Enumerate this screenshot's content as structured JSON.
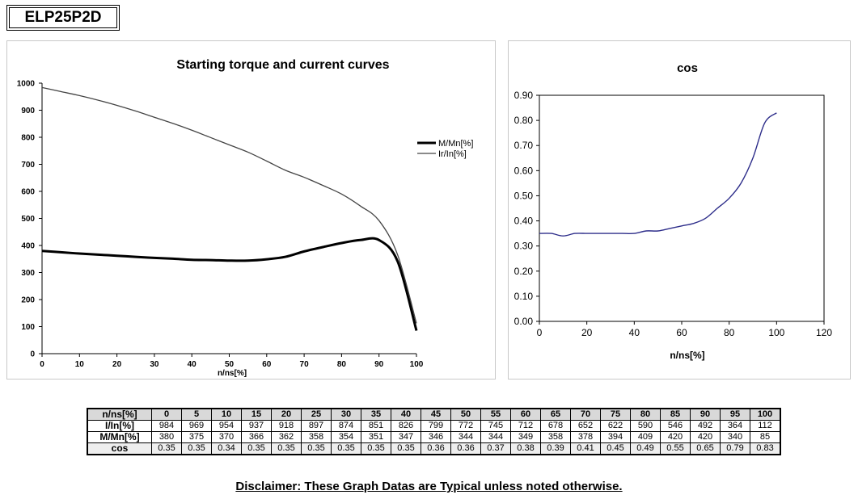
{
  "model": "ELP25P2D",
  "disclaimer": "Disclaimer: These Graph Datas are Typical unless noted otherwise.",
  "colors": {
    "torque": "#000000",
    "current": "#444444",
    "cos": "#2d2d8a"
  },
  "chart_data": [
    {
      "type": "line",
      "title": "Starting torque and current curves",
      "xlabel": "n/ns[%]",
      "ylabel": "",
      "xlim": [
        0,
        100
      ],
      "ylim": [
        0,
        1000
      ],
      "xticks": [
        0,
        10,
        20,
        30,
        40,
        50,
        60,
        70,
        80,
        90,
        100
      ],
      "yticks": [
        0,
        100,
        200,
        300,
        400,
        500,
        600,
        700,
        800,
        900,
        1000
      ],
      "x": [
        0,
        5,
        10,
        15,
        20,
        25,
        30,
        35,
        40,
        45,
        50,
        55,
        60,
        65,
        70,
        75,
        80,
        85,
        90,
        95,
        100
      ],
      "legend_position": "right",
      "grid": false,
      "series": [
        {
          "name": "M/Mn[%]",
          "values": [
            380,
            375,
            370,
            366,
            362,
            358,
            354,
            351,
            347,
            346,
            344,
            344,
            349,
            358,
            378,
            394,
            409,
            420,
            420,
            340,
            85
          ]
        },
        {
          "name": "Ir/In[%]",
          "values": [
            984,
            969,
            954,
            937,
            918,
            897,
            874,
            851,
            826,
            799,
            772,
            745,
            712,
            678,
            652,
            622,
            590,
            546,
            492,
            364,
            112
          ]
        }
      ]
    },
    {
      "type": "line",
      "title": "cos",
      "xlabel": "n/ns[%]",
      "ylabel": "",
      "xlim": [
        0,
        120
      ],
      "ylim": [
        0,
        0.9
      ],
      "xticks": [
        0,
        20,
        40,
        60,
        80,
        100,
        120
      ],
      "yticks": [
        "0.00",
        "0.10",
        "0.20",
        "0.30",
        "0.40",
        "0.50",
        "0.60",
        "0.70",
        "0.80",
        "0.90"
      ],
      "x": [
        0,
        5,
        10,
        15,
        20,
        25,
        30,
        35,
        40,
        45,
        50,
        55,
        60,
        65,
        70,
        75,
        80,
        85,
        90,
        95,
        100
      ],
      "legend_position": "none",
      "grid": false,
      "series": [
        {
          "values": [
            0.35,
            0.35,
            0.34,
            0.35,
            0.35,
            0.35,
            0.35,
            0.35,
            0.35,
            0.36,
            0.36,
            0.37,
            0.38,
            0.39,
            0.41,
            0.45,
            0.49,
            0.55,
            0.65,
            0.79,
            0.83
          ]
        }
      ]
    }
  ],
  "table": {
    "rows": [
      {
        "label": "n/ns[%]",
        "values": [
          "0",
          "5",
          "10",
          "15",
          "20",
          "25",
          "30",
          "35",
          "40",
          "45",
          "50",
          "55",
          "60",
          "65",
          "70",
          "75",
          "80",
          "85",
          "90",
          "95",
          "100"
        ]
      },
      {
        "label": "I/In[%]",
        "values": [
          "984",
          "969",
          "954",
          "937",
          "918",
          "897",
          "874",
          "851",
          "826",
          "799",
          "772",
          "745",
          "712",
          "678",
          "652",
          "622",
          "590",
          "546",
          "492",
          "364",
          "112"
        ]
      },
      {
        "label": "M/Mn[%]",
        "values": [
          "380",
          "375",
          "370",
          "366",
          "362",
          "358",
          "354",
          "351",
          "347",
          "346",
          "344",
          "344",
          "349",
          "358",
          "378",
          "394",
          "409",
          "420",
          "420",
          "340",
          "85"
        ]
      },
      {
        "label": "cos",
        "values": [
          "0.35",
          "0.35",
          "0.34",
          "0.35",
          "0.35",
          "0.35",
          "0.35",
          "0.35",
          "0.35",
          "0.36",
          "0.36",
          "0.37",
          "0.38",
          "0.39",
          "0.41",
          "0.45",
          "0.49",
          "0.55",
          "0.65",
          "0.79",
          "0.83"
        ]
      }
    ]
  }
}
